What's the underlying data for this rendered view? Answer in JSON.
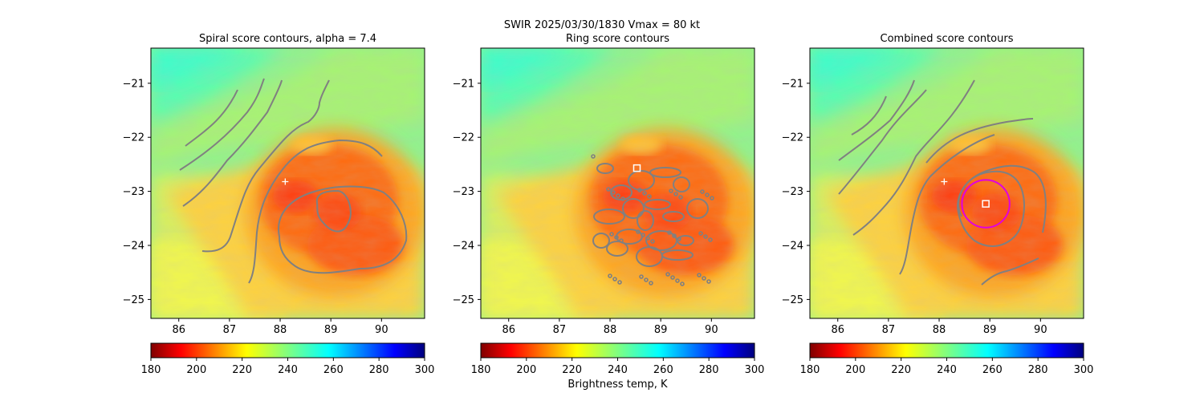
{
  "figure": {
    "suptitle": "SWIR  2025/03/30/1830    Vmax = 80 kt",
    "colorbar_label": "Brightness temp, K"
  },
  "chart_data": [
    {
      "type": "heatmap",
      "title": "Spiral score contours, alpha =  7.4",
      "xlim": [
        85.45,
        90.85
      ],
      "ylim": [
        -25.35,
        -20.35
      ],
      "xticks": [
        86,
        87,
        88,
        89,
        90
      ],
      "yticks": [
        -21,
        -22,
        -23,
        -24,
        -25
      ],
      "colorbar": {
        "cmap": "jet_r",
        "range": [
          180,
          300
        ],
        "ticks": [
          180,
          200,
          220,
          240,
          260,
          280,
          300
        ]
      },
      "contour_color": "#808080",
      "markers": [
        {
          "symbol": "plus",
          "lon": 88.1,
          "lat": -22.82,
          "color": "#ffffff"
        }
      ]
    },
    {
      "type": "heatmap",
      "title": "Ring score contours",
      "xlim": [
        85.45,
        90.85
      ],
      "ylim": [
        -25.35,
        -20.35
      ],
      "xticks": [
        86,
        87,
        88,
        89,
        90
      ],
      "yticks": [
        -21,
        -22,
        -23,
        -24,
        -25
      ],
      "colorbar": {
        "cmap": "jet_r",
        "range": [
          180,
          300
        ],
        "ticks": [
          180,
          200,
          220,
          240,
          260,
          280,
          300
        ]
      },
      "contour_color": "#808080",
      "markers": [
        {
          "symbol": "square",
          "lon": 88.53,
          "lat": -22.57,
          "color": "#ffffff"
        }
      ]
    },
    {
      "type": "heatmap",
      "title": "Combined score contours",
      "xlim": [
        85.45,
        90.85
      ],
      "ylim": [
        -25.35,
        -20.35
      ],
      "xticks": [
        86,
        87,
        88,
        89,
        90
      ],
      "yticks": [
        -21,
        -22,
        -23,
        -24,
        -25
      ],
      "colorbar": {
        "cmap": "jet_r",
        "range": [
          180,
          300
        ],
        "ticks": [
          180,
          200,
          220,
          240,
          260,
          280,
          300
        ]
      },
      "contour_color": "#808080",
      "markers": [
        {
          "symbol": "plus",
          "lon": 88.1,
          "lat": -22.82,
          "color": "#ffffff"
        },
        {
          "symbol": "square",
          "lon": 88.92,
          "lat": -23.23,
          "color": "#ffffff"
        },
        {
          "symbol": "circle",
          "lon": 88.92,
          "lat": -23.23,
          "radius_deg": 0.47,
          "color": "#e000e0"
        }
      ]
    }
  ]
}
